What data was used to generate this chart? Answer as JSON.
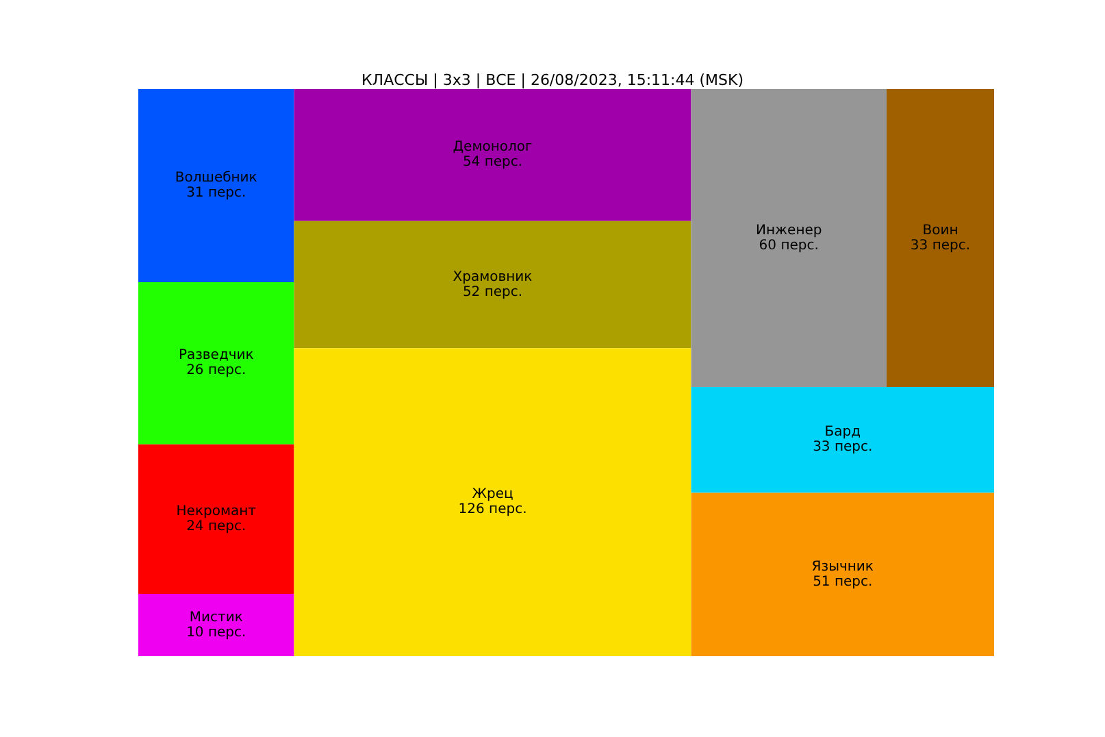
{
  "chart_data": {
    "type": "other",
    "title": "КЛАССЫ | 3х3 | ВСЕ | 26/08/2023, 15:11:44 (MSK)",
    "categories": [
      "Волшебник",
      "Разведчик",
      "Некромант",
      "Мистик",
      "Демонолог",
      "Храмовник",
      "Жрец",
      "Инженер",
      "Воин",
      "Бард",
      "Язычник"
    ],
    "values": [
      31,
      26,
      24,
      10,
      54,
      52,
      126,
      60,
      33,
      33,
      51
    ],
    "value_labels": [
      "31 перс.",
      "26 перс.",
      "24 перс.",
      "10 перс.",
      "54 перс.",
      "52 перс.",
      "126 перс.",
      "60 перс.",
      "33 перс.",
      "33 перс.",
      "51 перс."
    ],
    "colors": [
      "#0055ff",
      "#22ff00",
      "#ff0000",
      "#f000f0",
      "#a000aa",
      "#aca000",
      "#fce000",
      "#969696",
      "#a06000",
      "#00d4f8",
      "#fa9600"
    ]
  }
}
